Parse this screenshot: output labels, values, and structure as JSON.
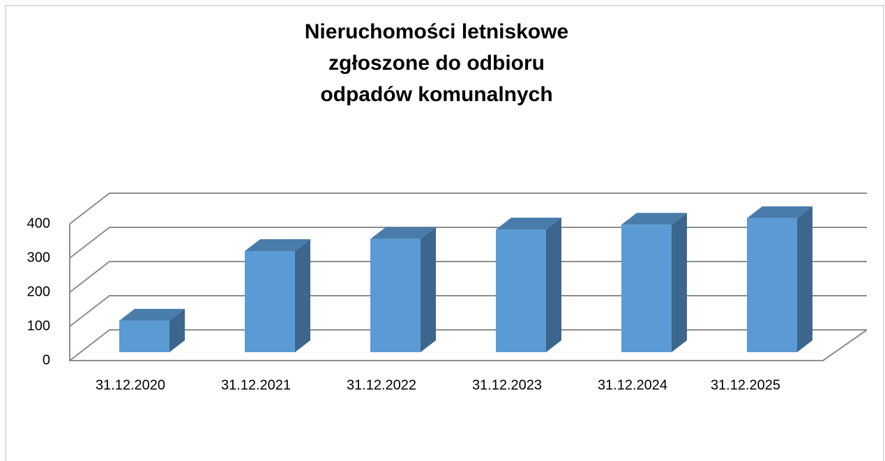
{
  "chart_data": {
    "type": "bar3d",
    "title": [
      "Nieruchomości letniskowe",
      "zgłoszone do odbioru",
      "odpadów komunalnych"
    ],
    "categories": [
      "31.12.2020",
      "31.12.2021",
      "31.12.2022",
      "31.12.2023",
      "31.12.2024",
      "31.12.2025"
    ],
    "values": [
      92,
      296,
      331,
      359,
      373,
      392
    ],
    "color": "#5b9bd5",
    "ylim": [
      0,
      400
    ],
    "yticks": [
      0,
      100,
      200,
      300,
      400
    ],
    "grid": true
  }
}
